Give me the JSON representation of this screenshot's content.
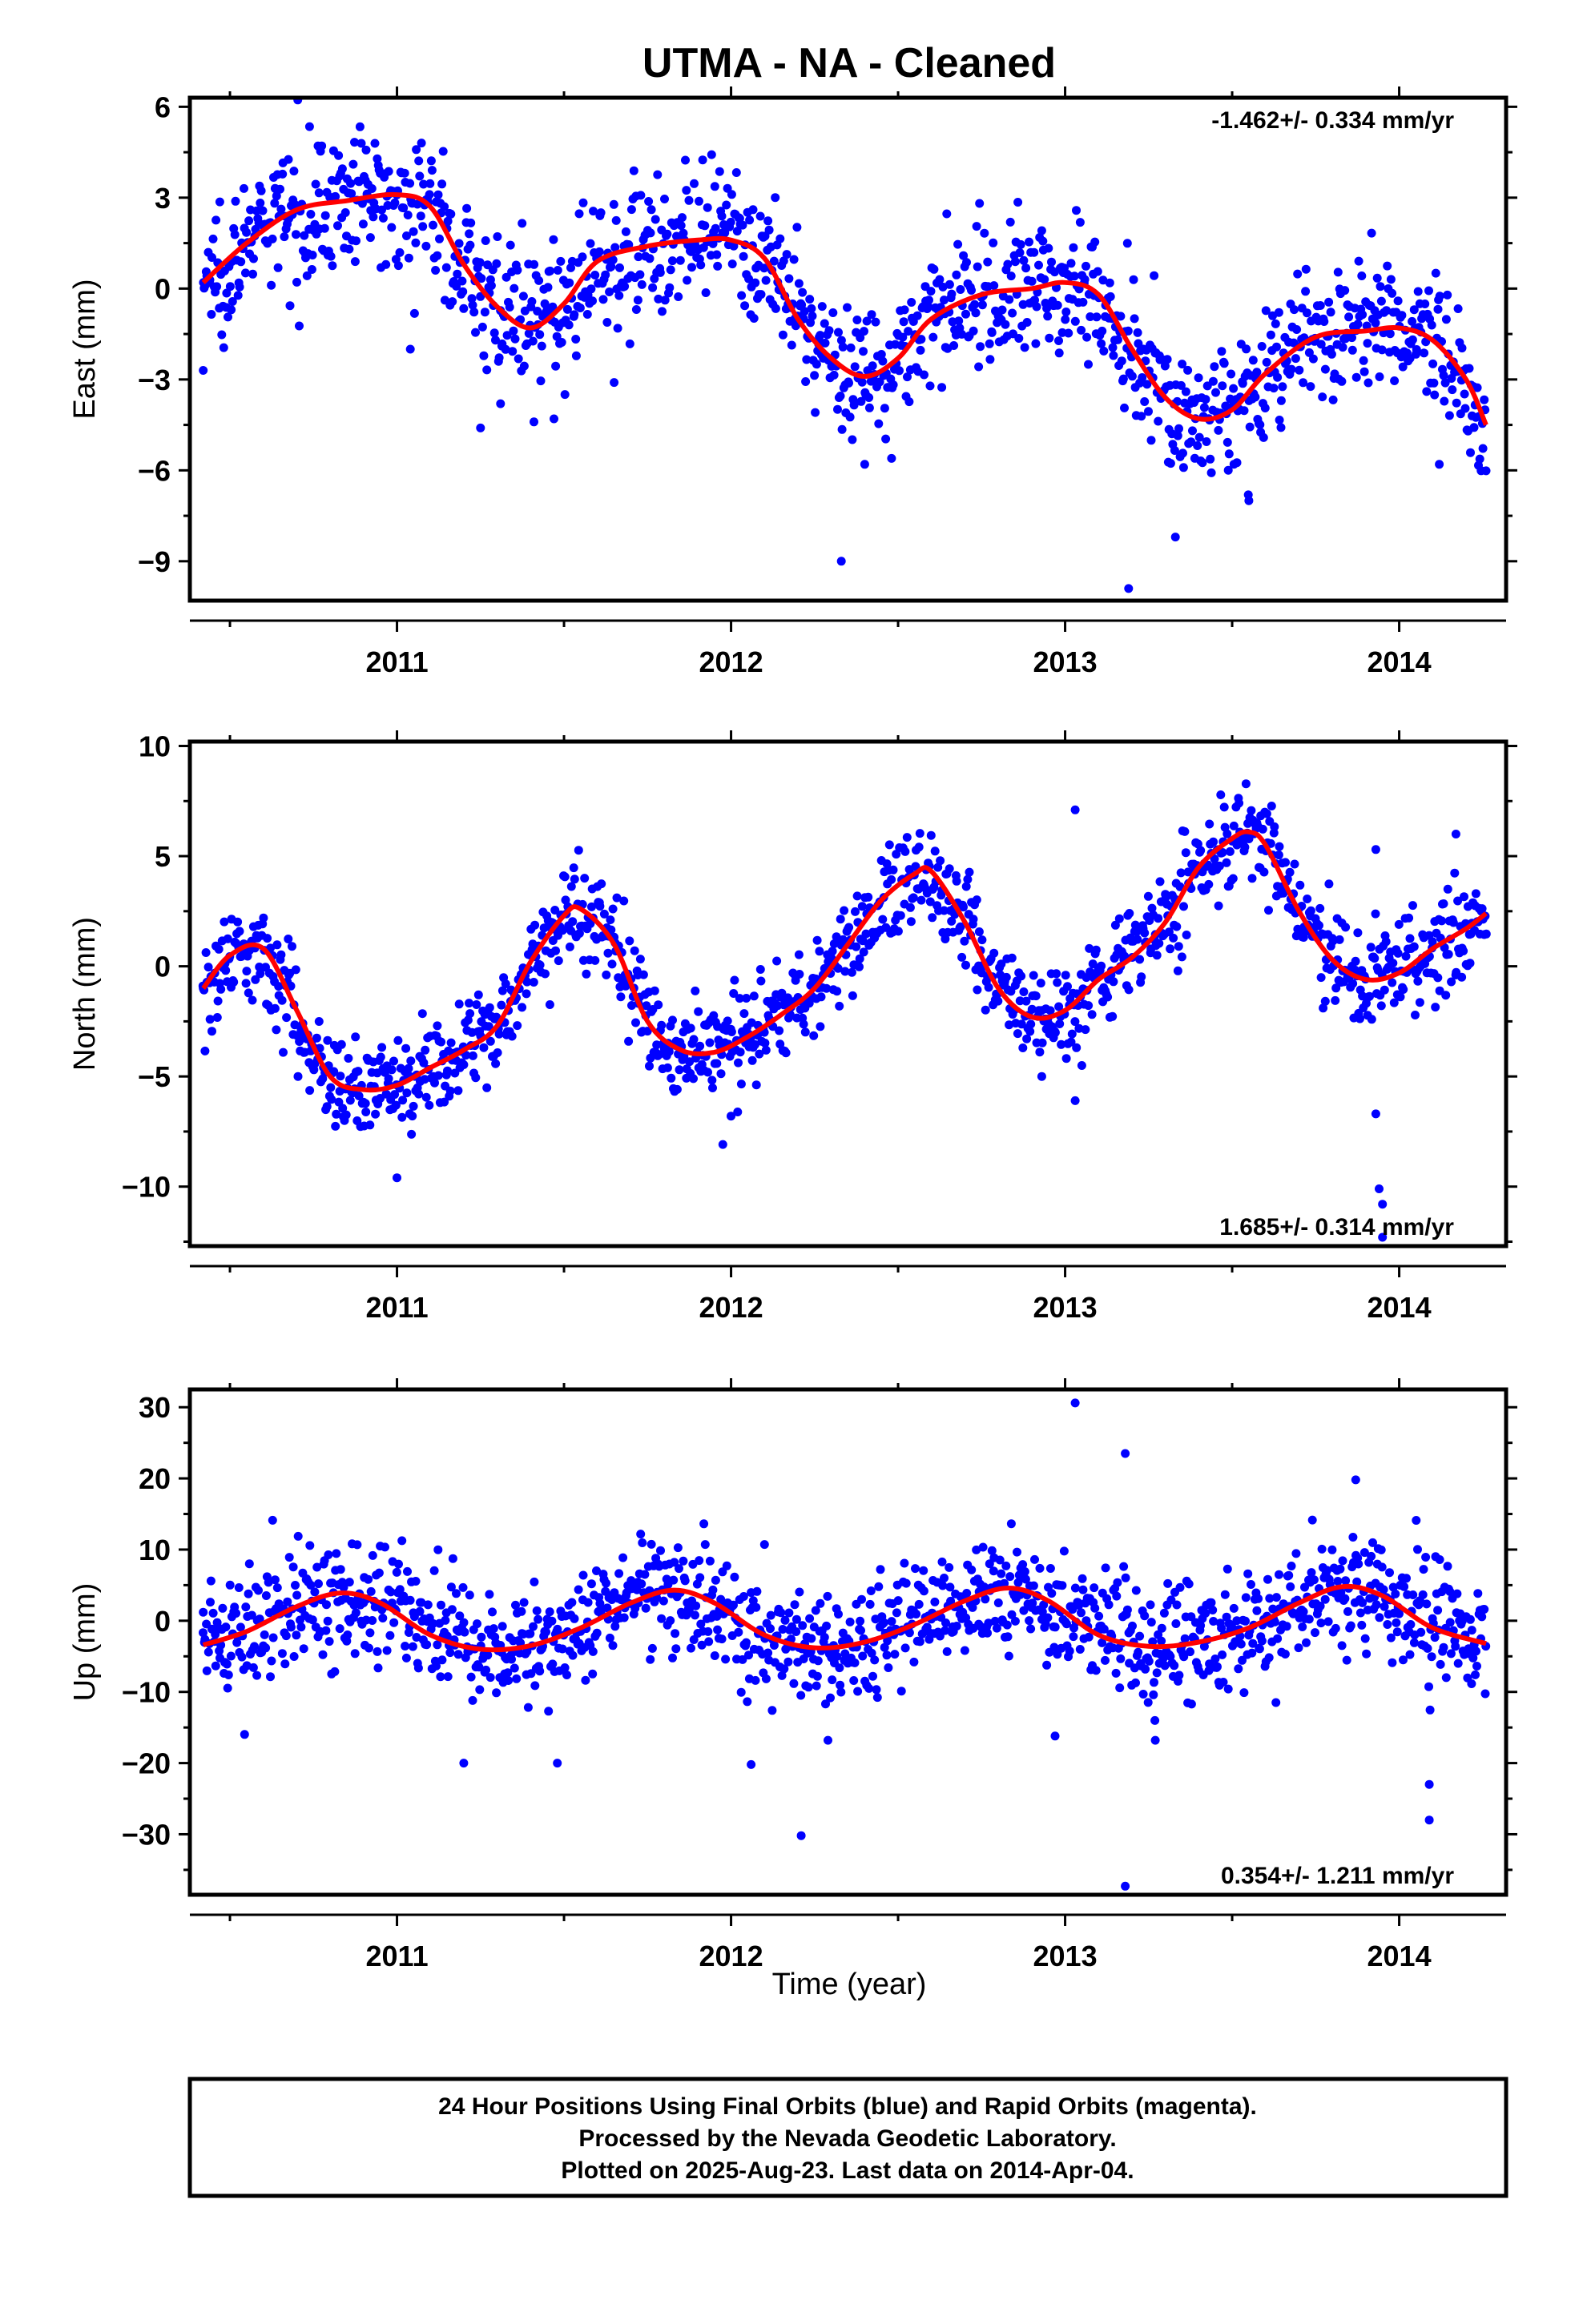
{
  "title": "UTMA  - NA - Cleaned",
  "x_axis_label": "Time (year)",
  "caption": [
    "24 Hour Positions Using Final Orbits (blue) and Rapid Orbits (magenta).",
    "Processed by the Nevada Geodetic Laboratory.",
    "Plotted on 2025-Aug-23. Last data on 2014-Apr-04."
  ],
  "colors": {
    "points": "#0000ff",
    "model": "#ff0000",
    "frame": "#000000"
  },
  "chart_data": [
    {
      "type": "scatter",
      "ylabel": "East (mm)",
      "rate_label": "-1.462+/- 0.334 mm/yr",
      "rate_position": "top-right",
      "xlim": [
        2010.38,
        2014.32
      ],
      "ylim": [
        -10.3,
        6.3
      ],
      "x_ticks": [
        2011,
        2012,
        2013,
        2014
      ],
      "y_ticks": [
        6,
        3,
        0,
        -3,
        -6,
        -9
      ],
      "y_tick_labels": [
        "6",
        "3",
        "0",
        "−3",
        "−6",
        "−9"
      ],
      "series": [
        {
          "kind": "points",
          "x_start": 2010.42,
          "x_end": 2014.26,
          "n": 1300,
          "noise_sd": 1.1,
          "outliers": [
            [
              2010.42,
              -2.7
            ],
            [
              2011.04,
              -2.0
            ],
            [
              2011.25,
              -4.6
            ],
            [
              2011.31,
              -3.8
            ],
            [
              2011.41,
              -4.4
            ],
            [
              2011.47,
              -4.3
            ],
            [
              2011.65,
              -3.1
            ],
            [
              2012.33,
              -9.0
            ],
            [
              2012.4,
              -5.8
            ],
            [
              2013.33,
              -8.2
            ],
            [
              2013.19,
              -9.9
            ],
            [
              2013.55,
              -7.0
            ],
            [
              2014.12,
              -5.8
            ]
          ]
        },
        {
          "kind": "model",
          "x": [
            2010.42,
            2010.55,
            2010.7,
            2010.85,
            2011.0,
            2011.1,
            2011.2,
            2011.3,
            2011.4,
            2011.5,
            2011.6,
            2011.75,
            2011.9,
            2012.0,
            2012.1,
            2012.2,
            2012.3,
            2012.4,
            2012.5,
            2012.6,
            2012.75,
            2012.9,
            2013.0,
            2013.1,
            2013.2,
            2013.3,
            2013.4,
            2013.5,
            2013.6,
            2013.75,
            2013.9,
            2014.0,
            2014.1,
            2014.2,
            2014.26
          ],
          "y": [
            0.2,
            1.5,
            2.6,
            2.9,
            3.1,
            2.7,
            0.8,
            -0.6,
            -1.3,
            -0.5,
            0.9,
            1.4,
            1.6,
            1.6,
            1.0,
            -1.0,
            -2.3,
            -2.9,
            -2.3,
            -1.0,
            -0.2,
            0.0,
            0.2,
            -0.2,
            -2.0,
            -3.6,
            -4.3,
            -4.0,
            -2.8,
            -1.6,
            -1.4,
            -1.3,
            -1.7,
            -3.0,
            -4.5
          ]
        }
      ]
    },
    {
      "type": "scatter",
      "ylabel": "North (mm)",
      "rate_label": "1.685+/- 0.314 mm/yr",
      "rate_position": "bottom-right",
      "xlim": [
        2010.38,
        2014.32
      ],
      "ylim": [
        -12.7,
        10.2
      ],
      "x_ticks": [
        2011,
        2012,
        2013,
        2014
      ],
      "y_ticks": [
        10,
        5,
        0,
        -5,
        -10
      ],
      "y_tick_labels": [
        "10",
        "5",
        "0",
        "−5",
        "−10"
      ],
      "series": [
        {
          "kind": "points",
          "x_start": 2010.42,
          "x_end": 2014.26,
          "n": 1300,
          "noise_sd": 1.1,
          "outliers": [
            [
              2010.42,
              -1.0
            ],
            [
              2011.0,
              -9.6
            ],
            [
              2012.0,
              -6.8
            ],
            [
              2012.93,
              -5.0
            ],
            [
              2013.03,
              -6.1
            ],
            [
              2013.03,
              7.1
            ],
            [
              2013.93,
              5.3
            ],
            [
              2013.93,
              -6.7
            ],
            [
              2013.94,
              -10.1
            ],
            [
              2013.95,
              -10.8
            ],
            [
              2013.95,
              -12.3
            ],
            [
              2014.17,
              6.0
            ]
          ]
        },
        {
          "kind": "model",
          "x": [
            2010.42,
            2010.5,
            2010.6,
            2010.7,
            2010.8,
            2010.9,
            2011.0,
            2011.1,
            2011.2,
            2011.3,
            2011.4,
            2011.5,
            2011.55,
            2011.65,
            2011.75,
            2011.85,
            2011.95,
            2012.05,
            2012.15,
            2012.25,
            2012.35,
            2012.45,
            2012.55,
            2012.6,
            2012.7,
            2012.8,
            2012.9,
            2013.0,
            2013.1,
            2013.2,
            2013.3,
            2013.4,
            2013.5,
            2013.55,
            2013.6,
            2013.7,
            2013.8,
            2013.9,
            2014.0,
            2014.1,
            2014.2,
            2014.26
          ],
          "y": [
            -1.0,
            0.5,
            0.8,
            -2.0,
            -5.0,
            -5.6,
            -5.4,
            -4.6,
            -3.8,
            -2.7,
            0.2,
            2.3,
            2.6,
            1.0,
            -2.5,
            -3.8,
            -3.9,
            -3.2,
            -2.2,
            -1.0,
            1.0,
            3.0,
            4.2,
            4.3,
            2.0,
            -1.0,
            -2.3,
            -2.0,
            -0.6,
            0.4,
            2.0,
            4.5,
            5.8,
            6.1,
            5.5,
            2.5,
            0.3,
            -0.6,
            -0.3,
            0.8,
            1.7,
            2.4
          ]
        }
      ]
    },
    {
      "type": "scatter",
      "ylabel": "Up (mm)",
      "rate_label": "0.354+/- 1.211 mm/yr",
      "rate_position": "bottom-right",
      "xlim": [
        2010.38,
        2014.32
      ],
      "ylim": [
        -38.5,
        32.5
      ],
      "x_ticks": [
        2011,
        2012,
        2013,
        2014
      ],
      "y_ticks": [
        30,
        20,
        10,
        0,
        -10,
        -20,
        -30
      ],
      "y_tick_labels": [
        "30",
        "20",
        "10",
        "0",
        "−10",
        "−20",
        "−30"
      ],
      "series": [
        {
          "kind": "points",
          "x_start": 2010.42,
          "x_end": 2014.26,
          "n": 1300,
          "noise_sd": 4.0,
          "outliers": [
            [
              2010.42,
              1.2
            ],
            [
              2011.2,
              -20.0
            ],
            [
              2011.48,
              -20.0
            ],
            [
              2012.06,
              -20.2
            ],
            [
              2012.21,
              -30.2
            ],
            [
              2012.29,
              -16.8
            ],
            [
              2012.97,
              -16.2
            ],
            [
              2013.03,
              30.6
            ],
            [
              2013.18,
              23.5
            ],
            [
              2013.27,
              -16.8
            ],
            [
              2013.18,
              -37.3
            ],
            [
              2013.87,
              19.8
            ],
            [
              2014.09,
              -23.0
            ],
            [
              2014.09,
              -28.0
            ]
          ]
        },
        {
          "kind": "model",
          "x": [
            2010.42,
            2010.55,
            2010.7,
            2010.83,
            2010.95,
            2011.1,
            2011.25,
            2011.4,
            2011.55,
            2011.7,
            2011.83,
            2011.95,
            2012.1,
            2012.25,
            2012.4,
            2012.55,
            2012.7,
            2012.83,
            2012.95,
            2013.1,
            2013.25,
            2013.4,
            2013.55,
            2013.7,
            2013.83,
            2013.95,
            2014.1,
            2014.26
          ],
          "y": [
            -3.4,
            -1.5,
            2.0,
            3.9,
            2.5,
            -2.0,
            -4.0,
            -3.5,
            -1.0,
            2.5,
            4.3,
            2.5,
            -2.0,
            -3.8,
            -3.0,
            -0.5,
            2.8,
            4.6,
            2.8,
            -2.0,
            -3.6,
            -3.0,
            -1.0,
            2.5,
            4.8,
            3.5,
            -1.0,
            -3.2
          ]
        }
      ]
    }
  ]
}
